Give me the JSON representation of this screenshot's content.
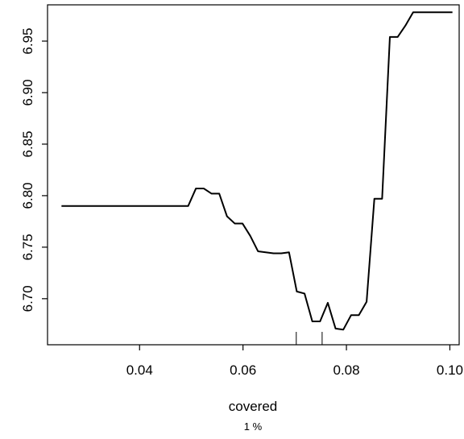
{
  "chart_data": {
    "type": "line",
    "title": "",
    "xlabel": "covered",
    "ylabel": "",
    "subtitle": "1 %",
    "xlim": [
      0.0222,
      0.1018
    ],
    "ylim": [
      6.6553,
      6.9852
    ],
    "xticks": [
      0.04,
      0.06,
      0.08,
      0.1
    ],
    "xtick_labels": [
      "0.04",
      "0.06",
      "0.08",
      "0.10"
    ],
    "yticks": [
      6.7,
      6.75,
      6.8,
      6.85,
      6.9,
      6.95
    ],
    "ytick_labels": [
      "6.70",
      "6.75",
      "6.80",
      "6.85",
      "6.90",
      "6.95"
    ],
    "grid": false,
    "series": [
      {
        "x": [
          0.0249,
          0.0494,
          0.0509,
          0.0524,
          0.0539,
          0.0554,
          0.0569,
          0.0584,
          0.0599,
          0.0614,
          0.0629,
          0.0644,
          0.0659,
          0.0674,
          0.0689,
          0.0704,
          0.0719,
          0.0734,
          0.0749,
          0.0764,
          0.0779,
          0.0794,
          0.0809,
          0.0824,
          0.0839,
          0.0854,
          0.0869,
          0.0884,
          0.0899,
          0.0914,
          0.0929,
          0.1005
        ],
        "y": [
          6.79,
          6.79,
          6.807,
          6.807,
          6.802,
          6.802,
          6.78,
          6.773,
          6.773,
          6.761,
          6.746,
          6.745,
          6.744,
          6.744,
          6.745,
          6.707,
          6.705,
          6.678,
          6.678,
          6.696,
          6.671,
          6.67,
          6.684,
          6.684,
          6.697,
          6.797,
          6.797,
          6.954,
          6.954,
          6.965,
          6.978,
          6.978
        ]
      }
    ],
    "rug": [
      0.0703,
      0.0753
    ]
  }
}
